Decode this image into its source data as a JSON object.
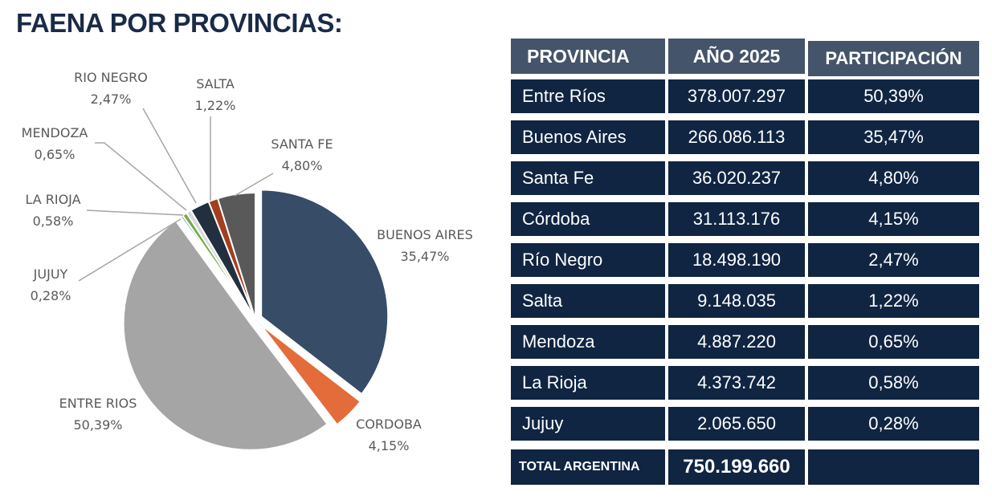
{
  "title": "FAENA POR PROVINCIAS:",
  "chart_data": {
    "type": "pie",
    "slices": [
      {
        "name": "BUENOS AIRES",
        "label": "35,47%",
        "value": 35.47,
        "color": "#364c67",
        "exploded": true
      },
      {
        "name": "CORDOBA",
        "label": "4,15%",
        "value": 4.15,
        "color": "#e46c3a",
        "exploded": true
      },
      {
        "name": "ENTRE RIOS",
        "label": "50,39%",
        "value": 50.39,
        "color": "#a5a5a5",
        "exploded": true
      },
      {
        "name": "JUJUY",
        "label": "0,28%",
        "value": 0.28,
        "color": "#4f81bd",
        "exploded": false
      },
      {
        "name": "LA RIOJA",
        "label": "0,58%",
        "value": 0.58,
        "color": "#70ad47",
        "exploded": false
      },
      {
        "name": "MENDOZA",
        "label": "0,65%",
        "value": 0.65,
        "color": "#d9d9d9",
        "exploded": false
      },
      {
        "name": "RIO NEGRO",
        "label": "2,47%",
        "value": 2.47,
        "color": "#222f3e",
        "exploded": false
      },
      {
        "name": "SALTA",
        "label": "1,22%",
        "value": 1.22,
        "color": "#a33e1f",
        "exploded": false
      },
      {
        "name": "SANTA FE",
        "label": "4,80%",
        "value": 4.8,
        "color": "#595959",
        "exploded": false
      }
    ]
  },
  "table": {
    "headers": [
      "PROVINCIA",
      "AÑO 2025",
      "PARTICIPACIÓN"
    ],
    "rows": [
      [
        "Entre Ríos",
        "378.007.297",
        "50,39%"
      ],
      [
        "Buenos Aires",
        "266.086.113",
        "35,47%"
      ],
      [
        "Santa Fe",
        "36.020.237",
        "4,80%"
      ],
      [
        "Córdoba",
        "31.113.176",
        "4,15%"
      ],
      [
        "Río Negro",
        "18.498.190",
        "2,47%"
      ],
      [
        "Salta",
        "9.148.035",
        "1,22%"
      ],
      [
        "Mendoza",
        "4.887.220",
        "0,65%"
      ],
      [
        "La Rioja",
        "4.373.742",
        "0,58%"
      ],
      [
        "Jujuy",
        "2.065.650",
        "0,28%"
      ]
    ],
    "total": [
      "TOTAL ARGENTINA",
      "750.199.660",
      ""
    ]
  }
}
